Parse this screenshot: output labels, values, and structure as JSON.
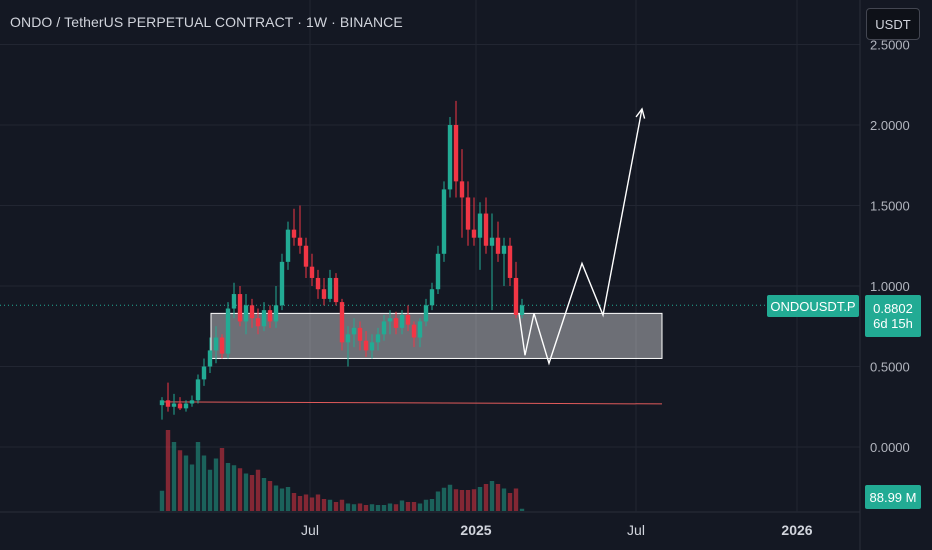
{
  "header": {
    "title": "ONDO / TetherUS PERPETUAL CONTRACT · 1W · BINANCE"
  },
  "currency_button": {
    "label": "USDT"
  },
  "price_axis": {
    "labels": [
      "2.5000",
      "2.0000",
      "1.5000",
      "1.0000",
      "0.5000",
      "0.0000"
    ]
  },
  "time_axis": {
    "labels": [
      "Jul",
      "2025",
      "Jul",
      "2026"
    ]
  },
  "tags": {
    "symbol": "ONDOUSDT.P",
    "price": "0.8802",
    "countdown": "6d 15h",
    "volume": "88.99 M"
  },
  "colors": {
    "up": "#22ab94",
    "down": "#f23645",
    "background": "#141823",
    "grid": "#222632",
    "support_line": "#e05a5a"
  },
  "chart_data": {
    "type": "candlestick",
    "title": "ONDO / TetherUS PERPETUAL CONTRACT · 1W · BINANCE",
    "symbol": "ONDOUSDT.P",
    "timeframe": "1W",
    "ylim": [
      -0.35,
      2.5
    ],
    "y_ticks": [
      2.5,
      2.0,
      1.5,
      1.0,
      0.5,
      0.0
    ],
    "x_ticks": [
      "Jul",
      "2025",
      "Jul",
      "2026"
    ],
    "grid": true,
    "last_price": 0.8802,
    "candles": [
      [
        0.26,
        0.31,
        0.17,
        0.29
      ],
      [
        0.29,
        0.4,
        0.22,
        0.25
      ],
      [
        0.25,
        0.33,
        0.2,
        0.27
      ],
      [
        0.27,
        0.31,
        0.23,
        0.24
      ],
      [
        0.24,
        0.29,
        0.22,
        0.27
      ],
      [
        0.27,
        0.32,
        0.25,
        0.29
      ],
      [
        0.29,
        0.45,
        0.27,
        0.42
      ],
      [
        0.42,
        0.55,
        0.38,
        0.5
      ],
      [
        0.5,
        0.68,
        0.46,
        0.6
      ],
      [
        0.6,
        0.75,
        0.52,
        0.68
      ],
      [
        0.68,
        0.7,
        0.55,
        0.58
      ],
      [
        0.58,
        0.9,
        0.55,
        0.86
      ],
      [
        0.86,
        1.02,
        0.8,
        0.95
      ],
      [
        0.95,
        1.0,
        0.75,
        0.78
      ],
      [
        0.78,
        0.95,
        0.7,
        0.88
      ],
      [
        0.88,
        0.92,
        0.74,
        0.8
      ],
      [
        0.8,
        0.86,
        0.7,
        0.75
      ],
      [
        0.75,
        0.9,
        0.72,
        0.85
      ],
      [
        0.85,
        0.88,
        0.74,
        0.78
      ],
      [
        0.78,
        1.0,
        0.74,
        0.88
      ],
      [
        0.88,
        1.2,
        0.85,
        1.15
      ],
      [
        1.15,
        1.4,
        1.1,
        1.35
      ],
      [
        1.35,
        1.48,
        1.25,
        1.3
      ],
      [
        1.3,
        1.5,
        1.2,
        1.25
      ],
      [
        1.25,
        1.3,
        1.05,
        1.12
      ],
      [
        1.12,
        1.2,
        1.0,
        1.05
      ],
      [
        1.05,
        1.1,
        0.92,
        0.98
      ],
      [
        0.98,
        1.05,
        0.88,
        0.92
      ],
      [
        0.92,
        1.1,
        0.9,
        1.05
      ],
      [
        1.05,
        1.08,
        0.88,
        0.9
      ],
      [
        0.9,
        0.92,
        0.6,
        0.65
      ],
      [
        0.65,
        0.75,
        0.5,
        0.7
      ],
      [
        0.7,
        0.8,
        0.62,
        0.74
      ],
      [
        0.74,
        0.78,
        0.6,
        0.66
      ],
      [
        0.66,
        0.72,
        0.56,
        0.6
      ],
      [
        0.6,
        0.7,
        0.55,
        0.65
      ],
      [
        0.65,
        0.74,
        0.6,
        0.7
      ],
      [
        0.7,
        0.82,
        0.66,
        0.78
      ],
      [
        0.78,
        0.85,
        0.7,
        0.8
      ],
      [
        0.8,
        0.84,
        0.7,
        0.74
      ],
      [
        0.74,
        0.85,
        0.7,
        0.82
      ],
      [
        0.82,
        0.88,
        0.72,
        0.76
      ],
      [
        0.76,
        0.78,
        0.62,
        0.68
      ],
      [
        0.68,
        0.8,
        0.62,
        0.78
      ],
      [
        0.78,
        0.92,
        0.75,
        0.88
      ],
      [
        0.88,
        1.02,
        0.85,
        0.98
      ],
      [
        0.98,
        1.25,
        0.95,
        1.2
      ],
      [
        1.2,
        1.65,
        1.15,
        1.6
      ],
      [
        1.6,
        2.05,
        1.55,
        2.0
      ],
      [
        2.0,
        2.15,
        1.55,
        1.65
      ],
      [
        1.65,
        1.85,
        1.3,
        1.55
      ],
      [
        1.55,
        1.65,
        1.25,
        1.35
      ],
      [
        1.35,
        1.55,
        1.25,
        1.3
      ],
      [
        1.3,
        1.52,
        1.1,
        1.45
      ],
      [
        1.45,
        1.55,
        1.2,
        1.25
      ],
      [
        1.25,
        1.45,
        0.85,
        1.3
      ],
      [
        1.3,
        1.4,
        1.15,
        1.2
      ],
      [
        1.2,
        1.3,
        1.0,
        1.25
      ],
      [
        1.25,
        1.3,
        1.0,
        1.05
      ],
      [
        1.05,
        1.15,
        0.8,
        0.82
      ],
      [
        0.82,
        0.92,
        0.8,
        0.88
      ]
    ],
    "volume": {
      "label": "88.99 M",
      "values": [
        27,
        108,
        92,
        81,
        74,
        62,
        92,
        74,
        55,
        70,
        84,
        64,
        61,
        57,
        50,
        48,
        55,
        44,
        40,
        34,
        30,
        32,
        24,
        20,
        22,
        18,
        22,
        16,
        15,
        12,
        15,
        10,
        9,
        10,
        8,
        9,
        8,
        8,
        10,
        9,
        14,
        12,
        12,
        10,
        15,
        16,
        26,
        31,
        35,
        29,
        28,
        28,
        29,
        32,
        36,
        40,
        36,
        30,
        24,
        30,
        3
      ]
    },
    "support_zone": {
      "y_top": 0.83,
      "y_bottom": 0.55
    },
    "horizontal_line": {
      "y": 0.28
    },
    "projection_path": [
      {
        "i": 59.5,
        "y": 0.83
      },
      {
        "i": 60.5,
        "y": 0.57
      },
      {
        "i": 62.0,
        "y": 0.83
      },
      {
        "i": 64.5,
        "y": 0.52
      },
      {
        "i": 70.0,
        "y": 1.14
      },
      {
        "i": 73.5,
        "y": 0.82
      },
      {
        "i": 80.0,
        "y": 2.1
      }
    ]
  }
}
